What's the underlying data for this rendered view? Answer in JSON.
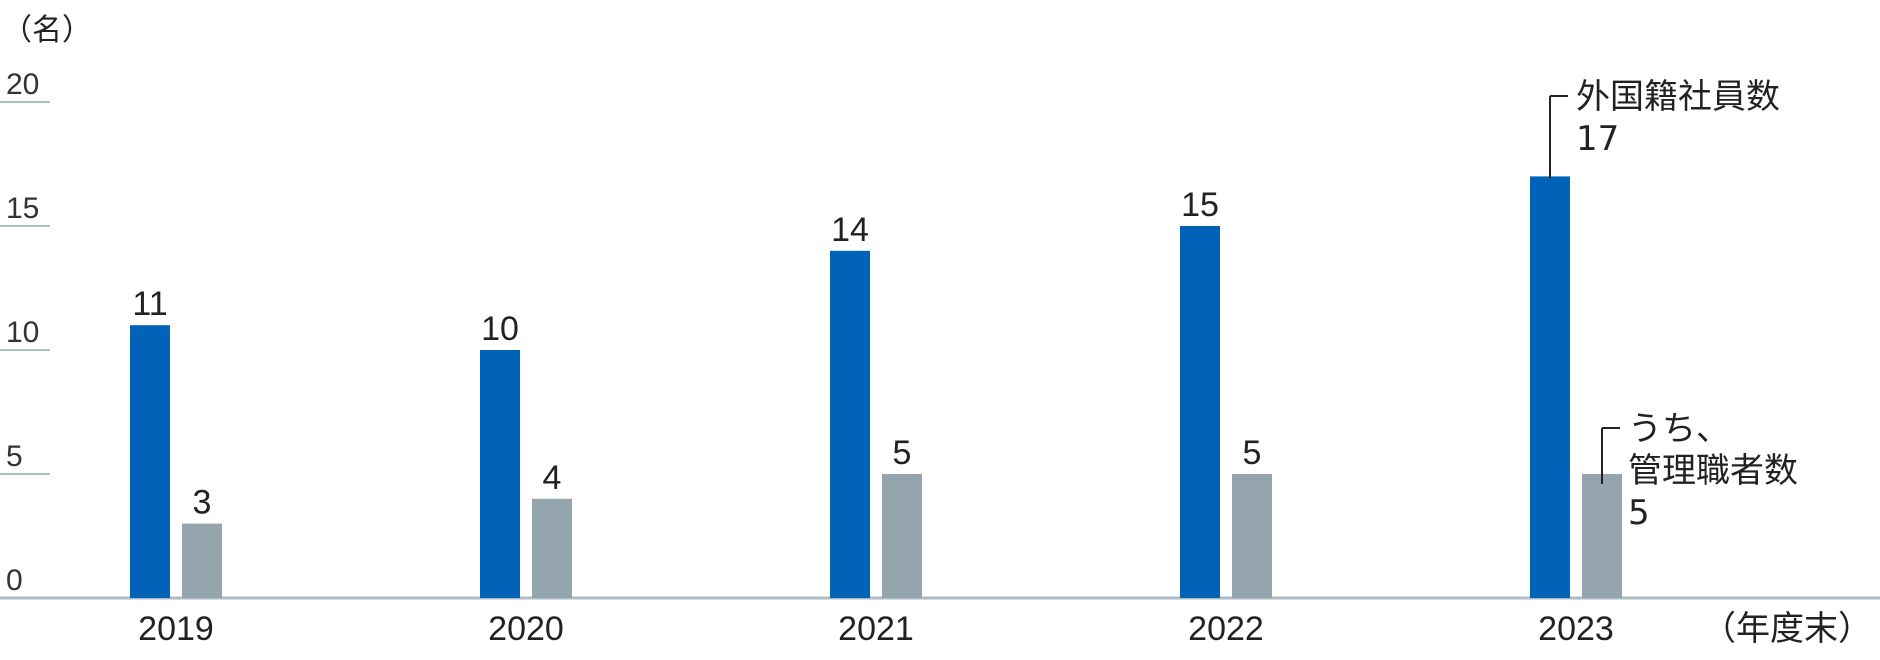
{
  "chart_data": {
    "type": "bar",
    "y_unit_label": "（名）",
    "x_unit_label": "（年度末）",
    "categories": [
      "2019",
      "2020",
      "2021",
      "2022",
      "2023"
    ],
    "series": [
      {
        "name": "外国籍社員数",
        "values": [
          11,
          10,
          14,
          15,
          17
        ],
        "color": "#0063b8"
      },
      {
        "name": "うち、管理職者数",
        "values": [
          3,
          4,
          5,
          5,
          5
        ],
        "color": "#94a5ae"
      }
    ],
    "ylim": [
      0,
      20
    ],
    "yticks": [
      0,
      5,
      10,
      15,
      20
    ],
    "grid": false,
    "callouts": [
      {
        "series": 0,
        "category": "2023",
        "lines": [
          "外国籍社員数"
        ],
        "value": "17"
      },
      {
        "series": 1,
        "category": "2023",
        "lines": [
          "うち、",
          "管理職者数"
        ],
        "value": "5"
      }
    ]
  }
}
